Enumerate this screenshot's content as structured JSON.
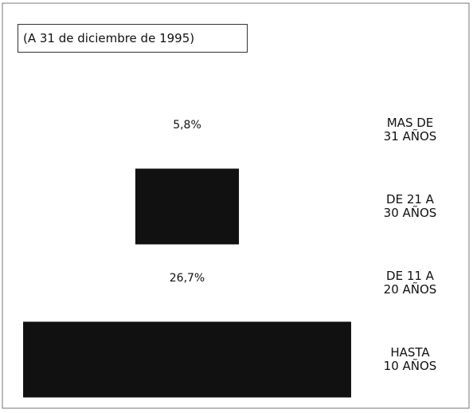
{
  "chart_data": {
    "type": "bar",
    "title": "(A 31 de diciembre de 1995)",
    "categories": [
      "MAS DE\n31 AÑOS",
      "DE 21 A\n30 AÑOS",
      "DE 11 A\n20 AÑOS",
      "HASTA\n10 AÑOS"
    ],
    "values": [
      5.8,
      16.2,
      26.7,
      51.3
    ],
    "value_labels": [
      "5,8%",
      null,
      "26,7%",
      null
    ],
    "colors": [
      "#ffffff",
      "#111111",
      "#ffffff",
      "#111111"
    ]
  }
}
